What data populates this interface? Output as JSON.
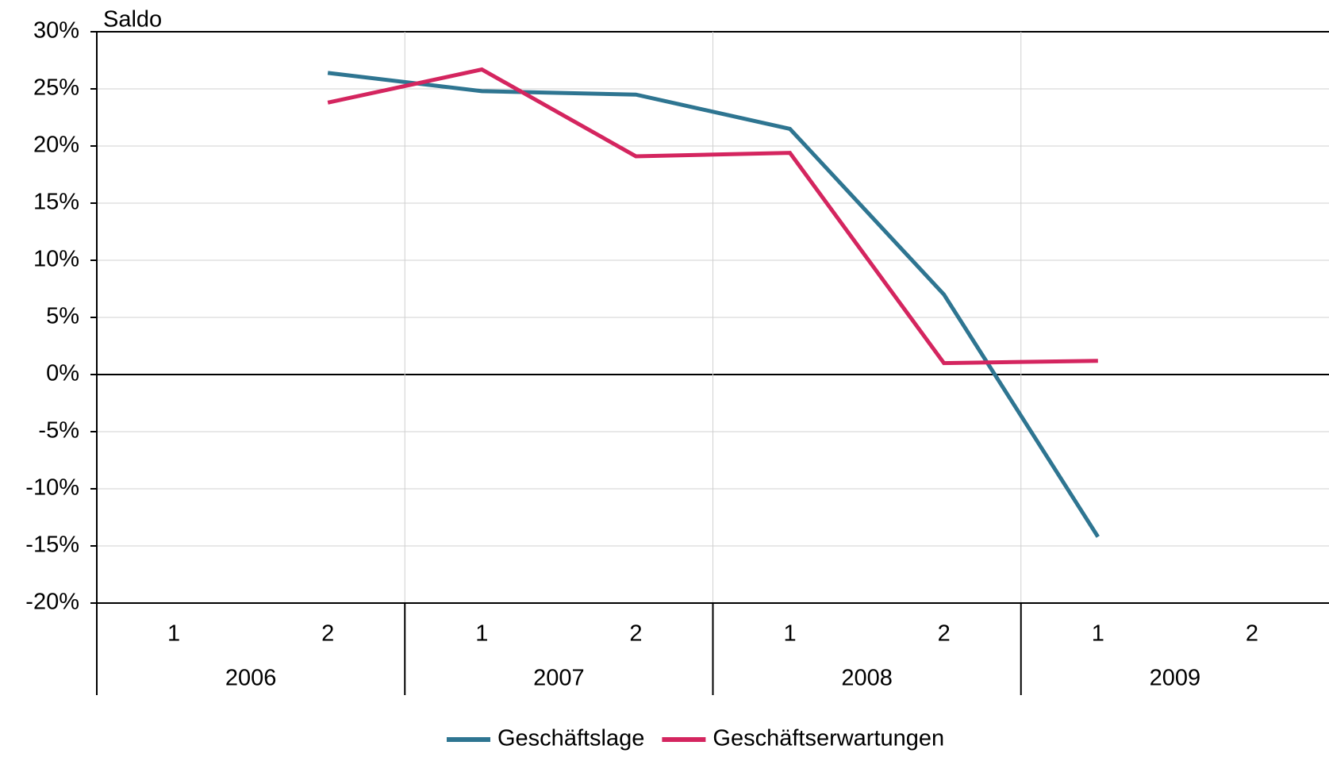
{
  "chart_data": {
    "type": "line",
    "y_axis_label": "Saldo",
    "categories": [
      "1",
      "2",
      "1",
      "2",
      "1",
      "2",
      "1",
      "2"
    ],
    "groups": [
      "2006",
      "2007",
      "2008",
      "2009"
    ],
    "series": [
      {
        "name": "Geschäftslage",
        "color": "#2e7591",
        "values": [
          null,
          26.4,
          24.8,
          24.5,
          21.5,
          7.0,
          -14.2,
          null
        ]
      },
      {
        "name": "Geschäftserwartungen",
        "color": "#d4255f",
        "values": [
          null,
          23.8,
          26.7,
          19.1,
          19.4,
          1.0,
          1.2,
          null
        ]
      }
    ],
    "ylim": [
      -20,
      30
    ],
    "yticks": [
      {
        "value": -20,
        "label": "-20%"
      },
      {
        "value": -15,
        "label": "-15%"
      },
      {
        "value": -10,
        "label": "-10%"
      },
      {
        "value": -5,
        "label": "-5%"
      },
      {
        "value": 0,
        "label": "0%"
      },
      {
        "value": 5,
        "label": "5%"
      },
      {
        "value": 10,
        "label": "10%"
      },
      {
        "value": 15,
        "label": "15%"
      },
      {
        "value": 20,
        "label": "20%"
      },
      {
        "value": 25,
        "label": "25%"
      },
      {
        "value": 30,
        "label": "30%"
      }
    ],
    "grid": true,
    "legend": "bottom"
  }
}
